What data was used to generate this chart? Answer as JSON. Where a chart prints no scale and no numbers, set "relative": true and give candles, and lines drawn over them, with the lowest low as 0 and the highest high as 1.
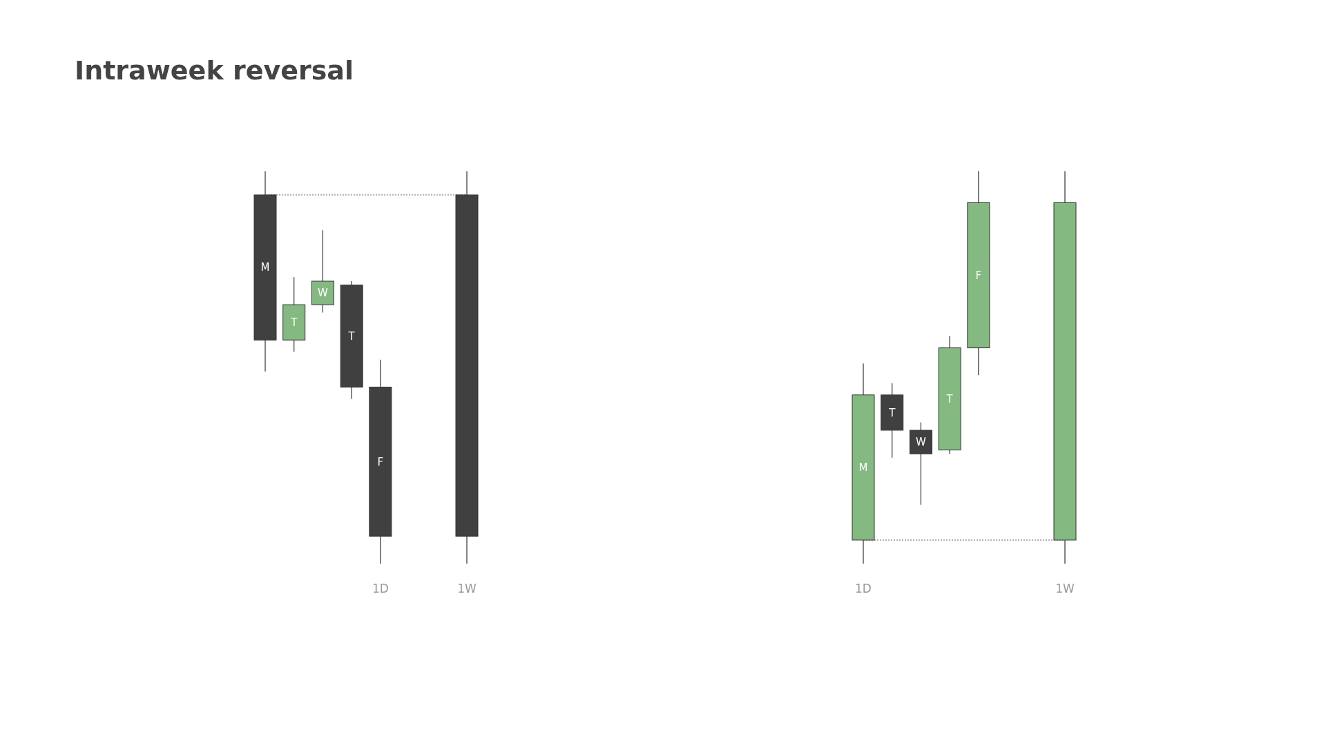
{
  "chart_data": [
    {
      "type": "candlestick",
      "title": "Intraweek reversal",
      "relative": true,
      "tick_labels": "x",
      "categories": [
        null,
        null,
        null,
        null,
        "1D",
        null,
        null,
        "1W"
      ],
      "ohlc": [
        [
          0.94,
          1,
          0.49,
          0.57
        ],
        [
          0.57,
          0.73,
          0.54,
          0.66
        ],
        [
          0.66,
          0.85,
          0.64,
          0.72
        ],
        [
          0.71,
          0.72,
          0.42,
          0.45
        ],
        [
          0.45,
          0.52,
          0,
          0.07
        ],
        null,
        null,
        [
          0.94,
          1,
          0,
          0.07
        ]
      ],
      "colors": [
        "#404040",
        "#84b981",
        "#84b981",
        "#404040",
        "#404040",
        null,
        null,
        "#404040"
      ],
      "value_labels": [
        "M",
        "T",
        "W",
        "T",
        "F",
        null,
        null,
        null
      ],
      "ref_lines": [
        {
          "axis": "y",
          "value": 0.94,
          "color": "#555555",
          "line_style": "dotted"
        }
      ]
    },
    {
      "type": "candlestick",
      "relative": true,
      "tick_labels": "x",
      "categories": [
        "1D",
        null,
        null,
        null,
        null,
        null,
        null,
        "1W"
      ],
      "ohlc": [
        [
          0.06,
          0.51,
          0,
          0.43
        ],
        [
          0.43,
          0.46,
          0.27,
          0.34
        ],
        [
          0.34,
          0.36,
          0.15,
          0.28
        ],
        [
          0.29,
          0.58,
          0.28,
          0.55
        ],
        [
          0.55,
          1,
          0.48,
          0.92
        ],
        null,
        null,
        [
          0.06,
          1,
          0,
          0.92
        ]
      ],
      "colors": [
        "#84b981",
        "#404040",
        "#404040",
        "#84b981",
        "#84b981",
        null,
        null,
        "#84b981"
      ],
      "value_labels": [
        "M",
        "T",
        "W",
        "T",
        "F",
        null,
        null,
        null
      ],
      "ref_lines": [
        {
          "axis": "y",
          "value": 0.06,
          "color": "#555555",
          "line_style": "dotted"
        }
      ]
    }
  ]
}
